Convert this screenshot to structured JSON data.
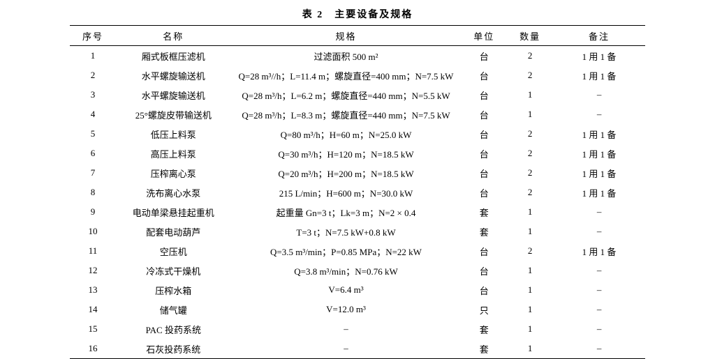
{
  "caption": "表 2　主要设备及规格",
  "columns": [
    {
      "key": "idx",
      "label": "序号",
      "width": "8%"
    },
    {
      "key": "name",
      "label": "名称",
      "width": "20%"
    },
    {
      "key": "spec",
      "label": "规格",
      "width": "40%"
    },
    {
      "key": "unit",
      "label": "单位",
      "width": "8%"
    },
    {
      "key": "qty",
      "label": "数量",
      "width": "8%"
    },
    {
      "key": "note",
      "label": "备注",
      "width": "16%"
    }
  ],
  "rows": [
    {
      "idx": "1",
      "name": "厢式板框压滤机",
      "spec": "过滤面积 500 m²",
      "unit": "台",
      "qty": "2",
      "note": "1 用 1 备"
    },
    {
      "idx": "2",
      "name": "水平螺旋输送机",
      "spec": "Q=28 m³//h；L=11.4 m；螺旋直径=400 mm；N=7.5 kW",
      "unit": "台",
      "qty": "2",
      "note": "1 用 1 备"
    },
    {
      "idx": "3",
      "name": "水平螺旋输送机",
      "spec": "Q=28 m³/h；L=6.2 m；螺旋直径=440 mm；N=5.5 kW",
      "unit": "台",
      "qty": "1",
      "note": "–"
    },
    {
      "idx": "4",
      "name": "25°螺旋皮带输送机",
      "spec": "Q=28 m³/h；L=8.3 m；螺旋直径=440 mm；N=7.5 kW",
      "unit": "台",
      "qty": "1",
      "note": "–"
    },
    {
      "idx": "5",
      "name": "低压上料泵",
      "spec": "Q=80 m³/h；H=60 m；N=25.0 kW",
      "unit": "台",
      "qty": "2",
      "note": "1 用 1 备"
    },
    {
      "idx": "6",
      "name": "高压上料泵",
      "spec": "Q=30 m³/h；H=120 m；N=18.5 kW",
      "unit": "台",
      "qty": "2",
      "note": "1 用 1 备"
    },
    {
      "idx": "7",
      "name": "压榨离心泵",
      "spec": "Q=20 m³/h；H=200 m；N=18.5 kW",
      "unit": "台",
      "qty": "2",
      "note": "1 用 1 备"
    },
    {
      "idx": "8",
      "name": "洗布离心水泵",
      "spec": "215 L/min；H=600 m；N=30.0 kW",
      "unit": "台",
      "qty": "2",
      "note": "1 用 1 备"
    },
    {
      "idx": "9",
      "name": "电动单梁悬挂起重机",
      "spec": "起重量 Gn=3 t；Lk=3 m；N=2 × 0.4",
      "unit": "套",
      "qty": "1",
      "note": "–"
    },
    {
      "idx": "10",
      "name": "配套电动葫芦",
      "spec": "T=3 t；N=7.5 kW+0.8 kW",
      "unit": "套",
      "qty": "1",
      "note": "–"
    },
    {
      "idx": "11",
      "name": "空压机",
      "spec": "Q=3.5 m³/min；P=0.85 MPa；N=22 kW",
      "unit": "台",
      "qty": "2",
      "note": "1 用 1 备"
    },
    {
      "idx": "12",
      "name": "冷冻式干燥机",
      "spec": "Q=3.8 m³/min；N=0.76 kW",
      "unit": "台",
      "qty": "1",
      "note": "–"
    },
    {
      "idx": "13",
      "name": "压榨水箱",
      "spec": "V=6.4 m³",
      "unit": "台",
      "qty": "1",
      "note": "–"
    },
    {
      "idx": "14",
      "name": "储气罐",
      "spec": "V=12.0 m³",
      "unit": "只",
      "qty": "1",
      "note": "–"
    },
    {
      "idx": "15",
      "name": "PAC 投药系统",
      "spec": "–",
      "unit": "套",
      "qty": "1",
      "note": "–"
    },
    {
      "idx": "16",
      "name": "石灰投药系统",
      "spec": "–",
      "unit": "套",
      "qty": "1",
      "note": "–"
    }
  ]
}
